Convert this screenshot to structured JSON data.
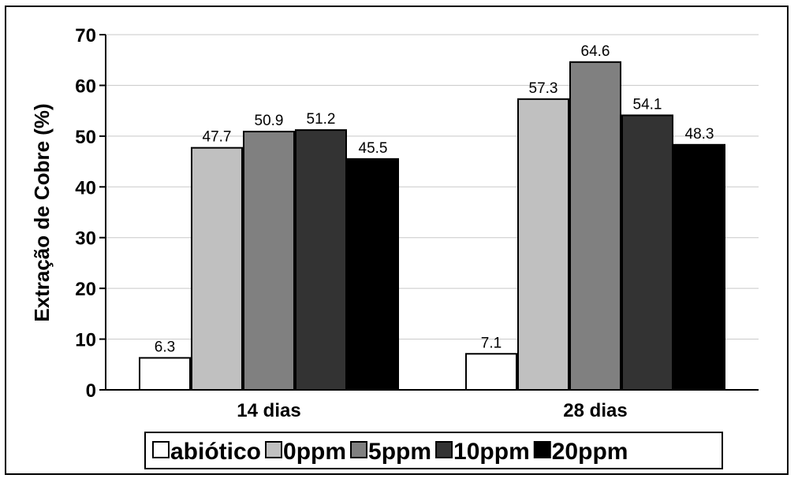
{
  "chart_data": {
    "type": "bar",
    "categories": [
      "14 dias",
      "28 dias"
    ],
    "series": [
      {
        "name": "abiótico",
        "values": [
          6.3,
          7.1
        ],
        "color": "#ffffff"
      },
      {
        "name": "0ppm",
        "values": [
          47.7,
          57.3
        ],
        "color": "#c0c0c0"
      },
      {
        "name": "5ppm",
        "values": [
          50.9,
          64.6
        ],
        "color": "#808080"
      },
      {
        "name": "10ppm",
        "values": [
          51.2,
          54.1
        ],
        "color": "#333333"
      },
      {
        "name": "20ppm",
        "values": [
          45.5,
          48.3
        ],
        "color": "#000000"
      }
    ],
    "ylabel": "Extração de Cobre (%)",
    "xlabel": "",
    "ylim": [
      0,
      70
    ],
    "yticks": [
      0,
      10,
      20,
      30,
      40,
      50,
      60,
      70
    ],
    "grid": true,
    "legend": "bottom"
  }
}
